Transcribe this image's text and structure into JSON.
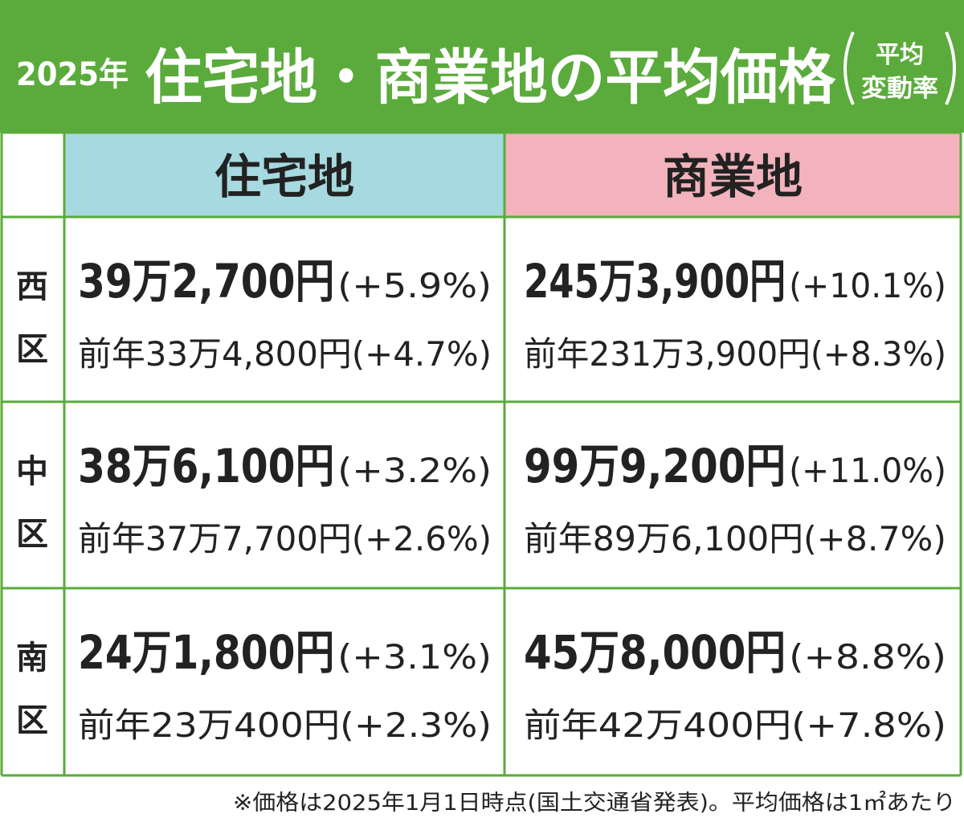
{
  "header": {
    "year": "2025年",
    "title": "住宅地・商業地の平均価格",
    "note": [
      "平均",
      "変動率"
    ]
  },
  "table": {
    "columns": [
      "住宅地",
      "商業地"
    ],
    "rows": [
      {
        "label": [
          "西",
          "区"
        ],
        "cells": [
          {
            "price": "39万2,700円",
            "change": "(+5.9%)",
            "previous": "前年33万4,800円(+4.7%)"
          },
          {
            "price": "245万3,900円",
            "change": "(+10.1%)",
            "previous": "前年231万3,900円(+8.3%)"
          }
        ]
      },
      {
        "label": [
          "中",
          "区"
        ],
        "cells": [
          {
            "price": "38万6,100円",
            "change": "(+3.2%)",
            "previous": "前年37万7,700円(+2.6%)"
          },
          {
            "price": "99万9,200円",
            "change": "(+11.0%)",
            "previous": "前年89万6,100円(+8.7%)"
          }
        ]
      },
      {
        "label": [
          "南",
          "区"
        ],
        "cells": [
          {
            "price": "24万1,800円",
            "change": "(+3.1%)",
            "previous": "前年23万400円(+2.3%)"
          },
          {
            "price": "45万8,000円",
            "change": "(+8.8%)",
            "previous": "前年42万400円(+7.8%)"
          }
        ]
      }
    ]
  },
  "footnote": "※価格は2025年1月1日時点(国土交通省発表)。平均価格は1㎡あたり"
}
